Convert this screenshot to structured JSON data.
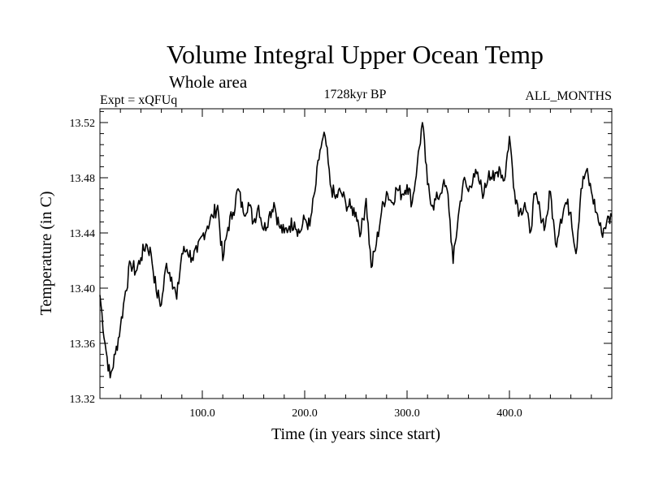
{
  "chart_data": {
    "type": "line",
    "title": "Volume Integral Upper Ocean Temp",
    "subtitle": "Whole area",
    "left_label": "Expt = xQFUq",
    "center_label": "1728kyr BP",
    "right_label": "ALL_MONTHS",
    "xlabel": "Time (in years since start)",
    "ylabel": "Temperature (in C)",
    "xlim": [
      0,
      500
    ],
    "ylim": [
      13.32,
      13.53
    ],
    "xticks": [
      100,
      200,
      300,
      400
    ],
    "xtick_labels": [
      "100.0",
      "200.0",
      "300.0",
      "400.0"
    ],
    "yticks": [
      13.32,
      13.36,
      13.4,
      13.44,
      13.48,
      13.52
    ],
    "ytick_labels": [
      "13.32",
      "13.36",
      "13.40",
      "13.44",
      "13.48",
      "13.52"
    ],
    "series": [
      {
        "name": "Volume Integral Upper Ocean Temp",
        "x": [
          0,
          5,
          10,
          15,
          20,
          25,
          30,
          35,
          40,
          45,
          50,
          55,
          60,
          65,
          70,
          75,
          80,
          85,
          90,
          95,
          100,
          105,
          110,
          115,
          120,
          125,
          130,
          135,
          140,
          145,
          150,
          155,
          160,
          165,
          170,
          175,
          180,
          185,
          190,
          195,
          200,
          205,
          210,
          215,
          220,
          225,
          230,
          235,
          240,
          245,
          250,
          255,
          260,
          265,
          270,
          275,
          280,
          285,
          290,
          295,
          300,
          305,
          310,
          315,
          320,
          325,
          330,
          335,
          340,
          345,
          350,
          355,
          360,
          365,
          370,
          375,
          380,
          385,
          390,
          395,
          400,
          405,
          410,
          415,
          420,
          425,
          430,
          435,
          440,
          445,
          450,
          455,
          460,
          465,
          470,
          475,
          480,
          485,
          490,
          495,
          500
        ],
        "values": [
          13.395,
          13.36,
          13.335,
          13.352,
          13.372,
          13.398,
          13.418,
          13.412,
          13.422,
          13.432,
          13.425,
          13.398,
          13.388,
          13.418,
          13.408,
          13.392,
          13.425,
          13.428,
          13.422,
          13.426,
          13.438,
          13.445,
          13.452,
          13.46,
          13.42,
          13.444,
          13.455,
          13.472,
          13.455,
          13.462,
          13.448,
          13.46,
          13.442,
          13.452,
          13.462,
          13.445,
          13.44,
          13.445,
          13.448,
          13.44,
          13.45,
          13.445,
          13.47,
          13.5,
          13.51,
          13.475,
          13.465,
          13.47,
          13.462,
          13.458,
          13.455,
          13.44,
          13.465,
          13.415,
          13.432,
          13.455,
          13.47,
          13.462,
          13.472,
          13.468,
          13.475,
          13.462,
          13.49,
          13.52,
          13.475,
          13.46,
          13.465,
          13.475,
          13.468,
          13.418,
          13.452,
          13.478,
          13.47,
          13.483,
          13.478,
          13.468,
          13.485,
          13.478,
          13.488,
          13.478,
          13.51,
          13.47,
          13.455,
          13.462,
          13.44,
          13.468,
          13.455,
          13.445,
          13.47,
          13.432,
          13.45,
          13.462,
          13.455,
          13.425,
          13.472,
          13.485,
          13.47,
          13.455,
          13.44,
          13.448,
          13.452
        ]
      }
    ]
  }
}
